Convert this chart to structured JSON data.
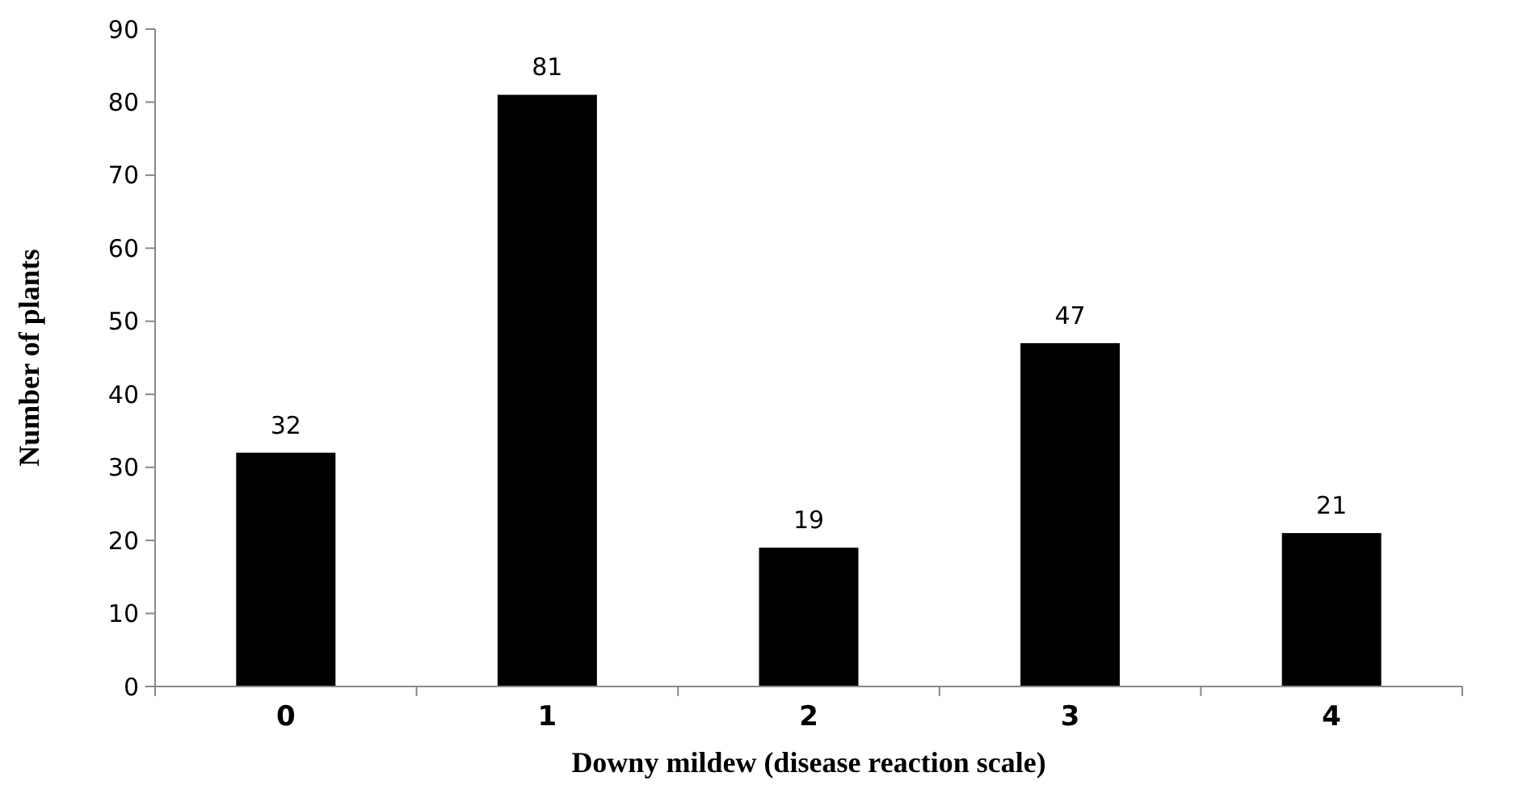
{
  "chart_data": {
    "type": "bar",
    "xlabel": "Downy mildew (disease reaction scale)",
    "ylabel": "Number of plants",
    "categories": [
      "0",
      "1",
      "2",
      "3",
      "4"
    ],
    "values": [
      32,
      81,
      19,
      47,
      21
    ],
    "color": "#000000",
    "ylim": [
      0,
      90
    ],
    "yticks": [
      0,
      10,
      20,
      30,
      40,
      50,
      60,
      70,
      80,
      90
    ],
    "data_labels": true,
    "grid": false
  }
}
